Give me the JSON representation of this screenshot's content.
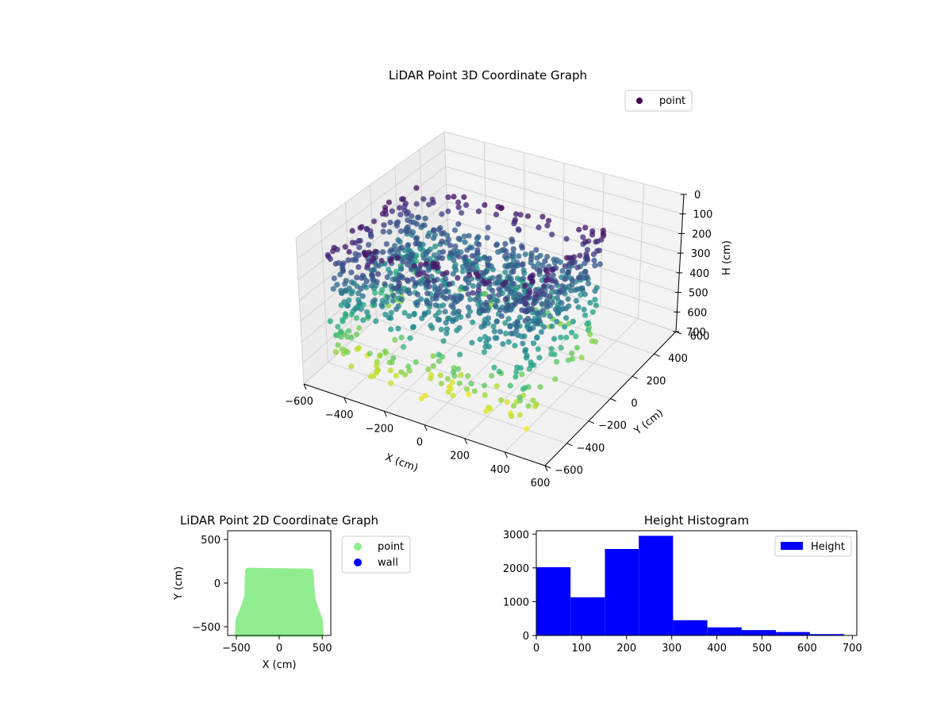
{
  "chart_data": [
    {
      "type": "scatter",
      "title": "LiDAR Point 3D Coordinate Graph",
      "xlabel": "X (cm)",
      "ylabel": "Y (cm)",
      "zlabel": "H (cm)",
      "xlim": [
        -600,
        600
      ],
      "ylim": [
        -600,
        600
      ],
      "zlim": [
        0,
        700
      ],
      "z_axis_inverted": true,
      "xticks": [
        "−600",
        "−400",
        "−200",
        "0",
        "200",
        "400",
        "600"
      ],
      "yticks": [
        "−600",
        "−400",
        "−200",
        "0",
        "200",
        "400",
        "600"
      ],
      "zticks": [
        "0",
        "100",
        "200",
        "300",
        "400",
        "500",
        "600",
        "700"
      ],
      "legend": {
        "position": "upper-right",
        "entries": [
          {
            "label": "point",
            "color": "#440154"
          }
        ]
      },
      "colormap": "viridis",
      "color_by": "height",
      "grid": true,
      "series": [
        {
          "name": "point",
          "x": [],
          "y": [],
          "z": []
        }
      ]
    },
    {
      "type": "scatter",
      "title": "LiDAR Point 2D Coordinate Graph",
      "xlabel": "X (cm)",
      "ylabel": "Y (cm)",
      "xlim": [
        -600,
        600
      ],
      "ylim": [
        -600,
        600
      ],
      "xticks": [
        "−500",
        "0",
        "500"
      ],
      "yticks": [
        "−500",
        "0",
        "500"
      ],
      "legend": {
        "position": "outside-right",
        "entries": [
          {
            "label": "point",
            "color": "#90ee90"
          },
          {
            "label": "wall",
            "color": "#0000ff"
          }
        ]
      },
      "series": [
        {
          "name": "point",
          "color": "#90ee90",
          "region": {
            "x": [
              -480,
              480
            ],
            "y": [
              -580,
              140
            ]
          }
        },
        {
          "name": "wall",
          "color": "#0000ff",
          "x": [],
          "y": []
        }
      ]
    },
    {
      "type": "bar",
      "title": "Height Histogram",
      "xlim": [
        0,
        710
      ],
      "ylim": [
        0,
        3100
      ],
      "xticks": [
        "0",
        "100",
        "200",
        "300",
        "400",
        "500",
        "600",
        "700"
      ],
      "yticks": [
        "0",
        "1000",
        "2000",
        "3000"
      ],
      "legend": {
        "position": "upper-right",
        "entries": [
          {
            "label": "Height",
            "color": "#0000ff"
          }
        ]
      },
      "color": "#0000ff",
      "series": [
        {
          "name": "Height",
          "bin_edges": [
            0,
            76,
            152,
            227,
            303,
            379,
            455,
            531,
            606,
            682
          ],
          "counts": [
            2020,
            1130,
            2560,
            2950,
            450,
            240,
            160,
            100,
            40
          ]
        }
      ]
    }
  ]
}
